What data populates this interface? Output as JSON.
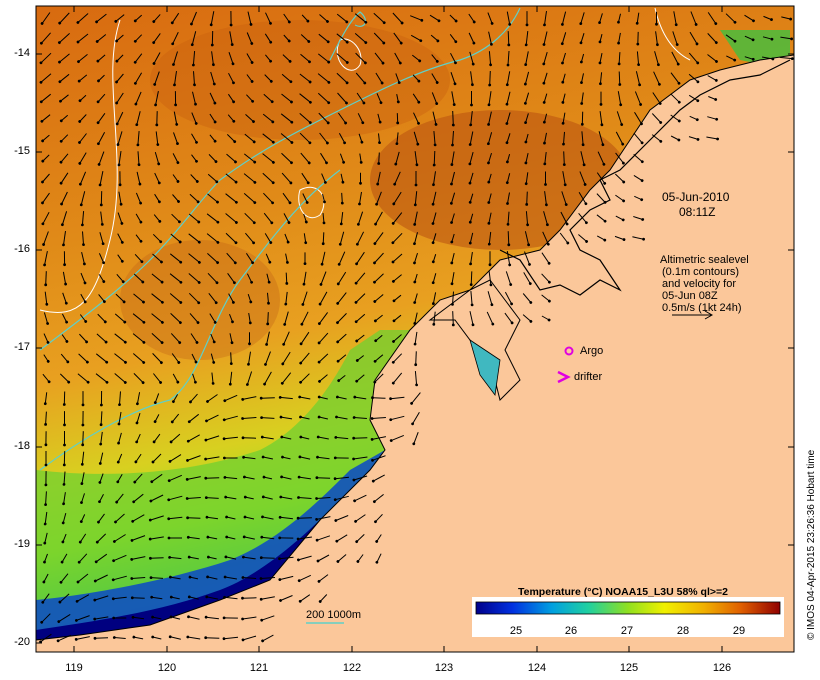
{
  "map": {
    "date": "05-Jun-2010",
    "time": "08:11Z",
    "legend_title": "Altimetric sealevel",
    "legend_lines": [
      "(0.1m contours)",
      "and velocity for",
      "05-Jun 08Z",
      "0.5m/s (1kt 24h)"
    ],
    "argo_label": "Argo",
    "drifter_label": "drifter",
    "depth_label": "200  1000m",
    "credit": "© IMOS 04-Apr-2015 23:26:36 Hobart time",
    "colorbar_title": "Temperature (°C) NOAA15_L3U 58% ql>=2",
    "colorbar_ticks": [
      "25",
      "26",
      "27",
      "28",
      "29"
    ],
    "y_ticks": [
      "-14",
      "-15",
      "-16",
      "-17",
      "-18",
      "-19",
      "-20"
    ],
    "x_ticks": [
      "119",
      "120",
      "121",
      "122",
      "123",
      "124",
      "125",
      "126"
    ],
    "colors": {
      "land": "#fbc79a",
      "argo": "#e000e0",
      "contour": "#5fd0c8",
      "coast": "#000000"
    }
  }
}
